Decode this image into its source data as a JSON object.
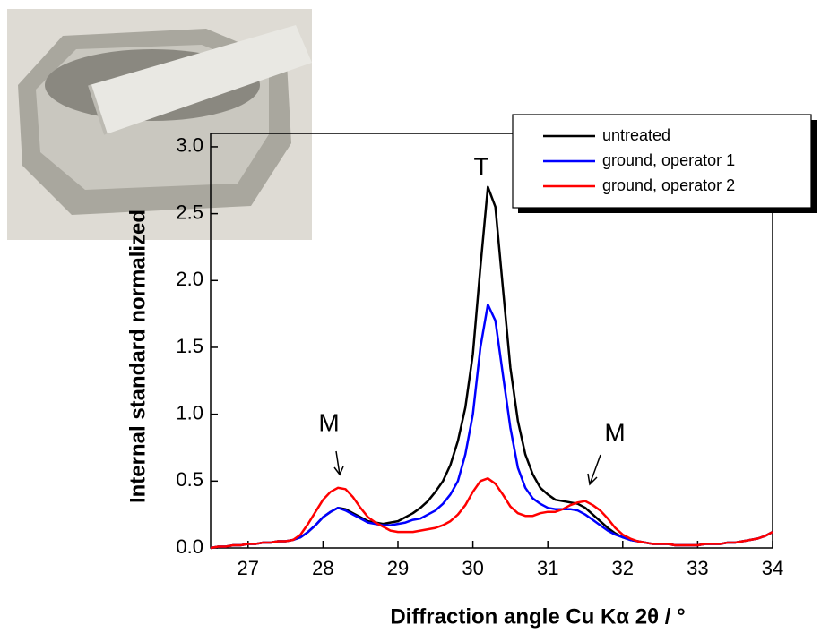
{
  "chart_data": {
    "type": "line",
    "x_label": "Diffraction angle Cu Kα 2θ / °",
    "y_label": "Internal standard normalized",
    "annotations": [
      "T",
      "M",
      "M"
    ],
    "xlim": [
      26.5,
      34
    ],
    "ylim": [
      0,
      3.1
    ],
    "xticks": [
      27,
      28,
      29,
      30,
      31,
      32,
      33,
      34
    ],
    "yticks": [
      {
        "value": 0,
        "label": "0.0"
      },
      0.5,
      {
        "value": 1,
        "label": "1.0"
      },
      1.5,
      {
        "value": 2,
        "label": "2.0"
      },
      2.5,
      {
        "value": 3,
        "label": "3.0"
      }
    ],
    "grid": false,
    "legend": "upper right",
    "x": [
      26.5,
      26.6,
      26.7,
      26.8,
      26.9,
      27.0,
      27.1,
      27.2,
      27.3,
      27.4,
      27.5,
      27.6,
      27.7,
      27.8,
      27.9,
      28.0,
      28.1,
      28.2,
      28.3,
      28.4,
      28.5,
      28.6,
      28.7,
      28.8,
      28.9,
      29.0,
      29.1,
      29.2,
      29.3,
      29.4,
      29.5,
      29.6,
      29.7,
      29.8,
      29.9,
      30.0,
      30.1,
      30.2,
      30.3,
      30.4,
      30.5,
      30.6,
      30.7,
      30.8,
      30.9,
      31.0,
      31.1,
      31.2,
      31.3,
      31.4,
      31.5,
      31.6,
      31.7,
      31.8,
      31.9,
      32.0,
      32.1,
      32.2,
      32.3,
      32.4,
      32.5,
      32.6,
      32.7,
      32.8,
      32.9,
      33.0,
      33.1,
      33.2,
      33.3,
      33.4,
      33.5,
      33.6,
      33.7,
      33.8,
      33.9,
      34.0
    ],
    "series": [
      {
        "name": "untreated",
        "color": "#000000",
        "values": [
          0.0,
          0.01,
          0.01,
          0.02,
          0.02,
          0.03,
          0.03,
          0.04,
          0.04,
          0.05,
          0.05,
          0.06,
          0.08,
          0.12,
          0.17,
          0.23,
          0.27,
          0.3,
          0.29,
          0.26,
          0.23,
          0.2,
          0.19,
          0.18,
          0.19,
          0.2,
          0.23,
          0.26,
          0.3,
          0.35,
          0.42,
          0.5,
          0.62,
          0.8,
          1.05,
          1.45,
          2.1,
          2.7,
          2.55,
          1.95,
          1.35,
          0.95,
          0.7,
          0.55,
          0.45,
          0.4,
          0.36,
          0.35,
          0.34,
          0.33,
          0.3,
          0.25,
          0.2,
          0.15,
          0.11,
          0.08,
          0.06,
          0.05,
          0.04,
          0.03,
          0.03,
          0.03,
          0.02,
          0.02,
          0.02,
          0.02,
          0.03,
          0.03,
          0.03,
          0.04,
          0.04,
          0.05,
          0.06,
          0.07,
          0.09,
          0.12
        ]
      },
      {
        "name": "ground, operator 1",
        "color": "#0000ff",
        "values": [
          0.0,
          0.01,
          0.01,
          0.02,
          0.02,
          0.03,
          0.03,
          0.04,
          0.04,
          0.05,
          0.05,
          0.06,
          0.08,
          0.12,
          0.17,
          0.23,
          0.27,
          0.3,
          0.28,
          0.25,
          0.22,
          0.19,
          0.18,
          0.17,
          0.17,
          0.18,
          0.19,
          0.21,
          0.22,
          0.25,
          0.28,
          0.33,
          0.4,
          0.5,
          0.7,
          1.0,
          1.5,
          1.82,
          1.7,
          1.3,
          0.9,
          0.6,
          0.45,
          0.37,
          0.33,
          0.3,
          0.29,
          0.29,
          0.29,
          0.28,
          0.25,
          0.21,
          0.17,
          0.13,
          0.1,
          0.08,
          0.06,
          0.05,
          0.04,
          0.03,
          0.03,
          0.03,
          0.02,
          0.02,
          0.02,
          0.02,
          0.03,
          0.03,
          0.03,
          0.04,
          0.04,
          0.05,
          0.06,
          0.07,
          0.09,
          0.12
        ]
      },
      {
        "name": "ground, operator 2",
        "color": "#ff0000",
        "values": [
          0.0,
          0.01,
          0.01,
          0.02,
          0.02,
          0.03,
          0.03,
          0.04,
          0.04,
          0.05,
          0.05,
          0.06,
          0.1,
          0.18,
          0.27,
          0.36,
          0.42,
          0.45,
          0.44,
          0.38,
          0.3,
          0.23,
          0.19,
          0.16,
          0.13,
          0.12,
          0.12,
          0.12,
          0.13,
          0.14,
          0.15,
          0.17,
          0.2,
          0.25,
          0.32,
          0.42,
          0.5,
          0.52,
          0.48,
          0.4,
          0.31,
          0.26,
          0.24,
          0.24,
          0.26,
          0.27,
          0.27,
          0.29,
          0.32,
          0.34,
          0.35,
          0.32,
          0.28,
          0.22,
          0.15,
          0.1,
          0.07,
          0.05,
          0.04,
          0.03,
          0.03,
          0.03,
          0.02,
          0.02,
          0.02,
          0.02,
          0.03,
          0.03,
          0.03,
          0.04,
          0.04,
          0.05,
          0.06,
          0.07,
          0.09,
          0.12
        ]
      }
    ]
  }
}
